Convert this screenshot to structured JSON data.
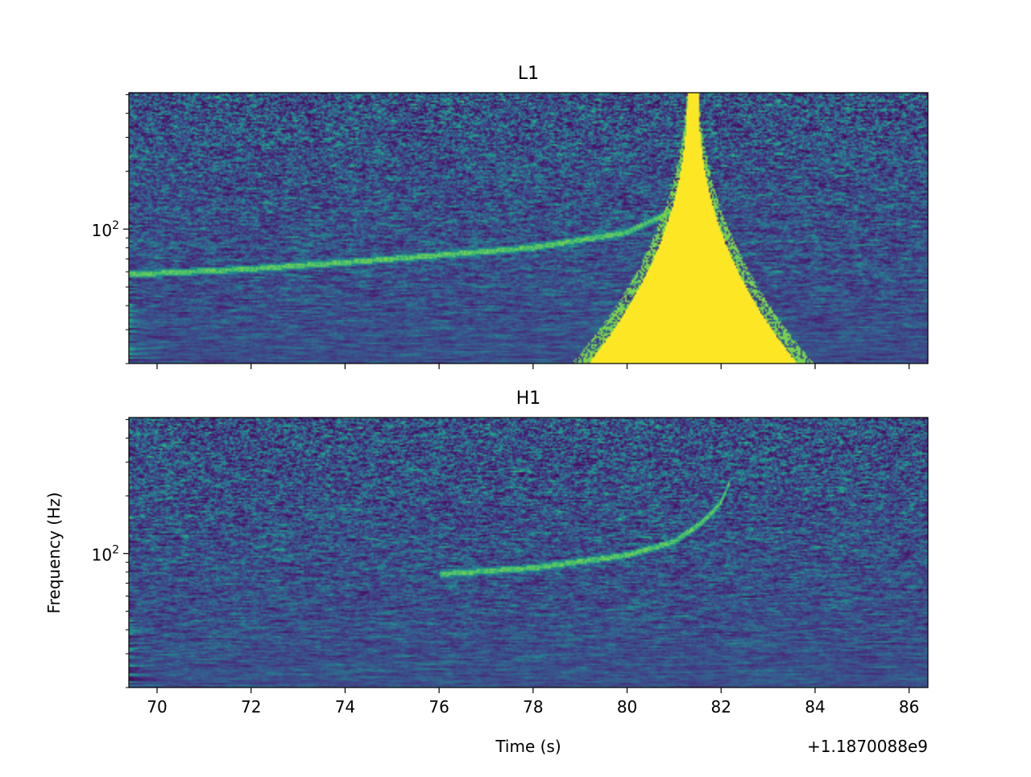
{
  "figure": {
    "xlabel": "Time (s)",
    "ylabel": "Frequency (Hz)",
    "offset_label": "+1.1870088e9"
  },
  "chart_data": [
    {
      "type": "heatmap",
      "title": "L1",
      "colormap": "viridis",
      "xlim": [
        69.4,
        86.4
      ],
      "ylim": [
        20,
        512
      ],
      "yscale": "log",
      "x_ticks": [
        70,
        72,
        74,
        76,
        78,
        80,
        82,
        84,
        86
      ],
      "x_tick_labels_visible": false,
      "y_major_ticks": [
        {
          "value": 100,
          "label": "10",
          "exponent": "2"
        }
      ],
      "features": {
        "merger_time": 81.4,
        "track": [
          [
            69.4,
            58
          ],
          [
            72.0,
            62
          ],
          [
            74.0,
            67
          ],
          [
            76.0,
            73
          ],
          [
            78.0,
            80
          ],
          [
            80.0,
            96
          ],
          [
            81.0,
            125
          ],
          [
            81.4,
            400
          ]
        ],
        "glitch": {
          "center_time": 81.4,
          "base_width_s": 4.2,
          "saturated": true
        }
      }
    },
    {
      "type": "heatmap",
      "title": "H1",
      "colormap": "viridis",
      "xlim": [
        69.4,
        86.4
      ],
      "ylim": [
        20,
        512
      ],
      "yscale": "log",
      "x_ticks": [
        70,
        72,
        74,
        76,
        78,
        80,
        82,
        84,
        86
      ],
      "x_tick_labels": [
        "70",
        "72",
        "74",
        "76",
        "78",
        "80",
        "82",
        "84",
        "86"
      ],
      "y_major_ticks": [
        {
          "value": 100,
          "label": "10",
          "exponent": "2"
        }
      ],
      "features": {
        "merger_time": 82.2,
        "track": [
          [
            76.0,
            78
          ],
          [
            78.0,
            84
          ],
          [
            80.0,
            98
          ],
          [
            81.0,
            115
          ],
          [
            81.6,
            145
          ],
          [
            82.0,
            185
          ],
          [
            82.2,
            240
          ]
        ]
      }
    }
  ]
}
